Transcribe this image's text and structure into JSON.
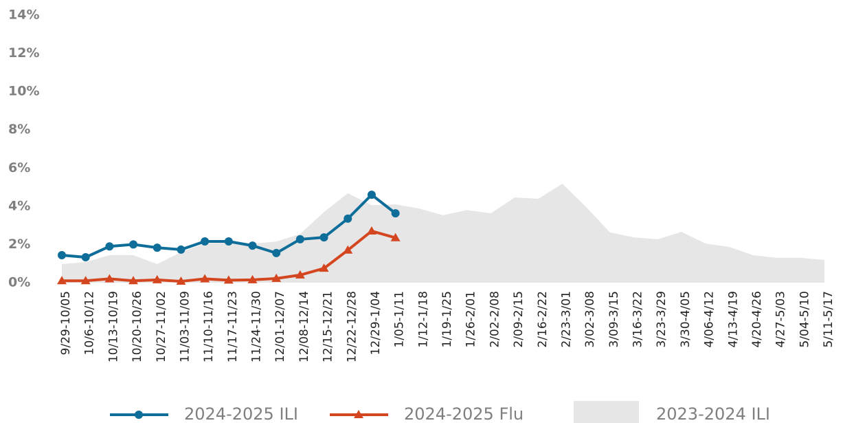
{
  "chart_data": {
    "type": "line",
    "categories": [
      "9/29-10/05",
      "10/6-10/12",
      "10/13-10/19",
      "10/20-10/26",
      "10/27-11/02",
      "11/03-11/09",
      "11/10-11/16",
      "11/17-11/23",
      "11/24-11/30",
      "12/01-12/07",
      "12/08-12/14",
      "12/15-12/21",
      "12/22-12/28",
      "12/29-1/04",
      "1/05-1/11",
      "1/12-1/18",
      "1/19-1/25",
      "1/26-2/01",
      "2/02-2/08",
      "2/09-2/15",
      "2/16-2/22",
      "2/23-3/01",
      "3/02-3/08",
      "3/09-3/15",
      "3/16-3/22",
      "3/23-3/29",
      "3/30-4/05",
      "4/06-4/12",
      "4/13-4/19",
      "4/20-4/26",
      "4/27-5/03",
      "5/04-5/10",
      "5/11-5/17"
    ],
    "series": [
      {
        "name": "2023-2024 ILI",
        "kind": "area",
        "color": "#e6e6e6",
        "values": [
          0.97,
          1.08,
          1.44,
          1.44,
          0.97,
          1.6,
          2.05,
          2.1,
          2.05,
          2.15,
          2.55,
          3.7,
          4.68,
          4.06,
          4.1,
          3.88,
          3.53,
          3.8,
          3.63,
          4.46,
          4.39,
          5.18,
          3.96,
          2.63,
          2.37,
          2.27,
          2.66,
          2.05,
          1.87,
          1.44,
          1.3,
          1.3,
          1.19
        ]
      },
      {
        "name": "2024-2025 ILI",
        "kind": "line",
        "marker": "circle",
        "color": "#0f6e99",
        "values": [
          1.44,
          1.33,
          1.9,
          2.0,
          1.83,
          1.73,
          2.16,
          2.16,
          1.94,
          1.55,
          2.27,
          2.37,
          3.35,
          4.6,
          3.63,
          null,
          null,
          null,
          null,
          null,
          null,
          null,
          null,
          null,
          null,
          null,
          null,
          null,
          null,
          null,
          null,
          null,
          null
        ]
      },
      {
        "name": "2024-2025 Flu",
        "kind": "line",
        "marker": "triangle",
        "color": "#d4461f",
        "values": [
          0.1,
          0.1,
          0.2,
          0.1,
          0.15,
          0.07,
          0.2,
          0.13,
          0.15,
          0.22,
          0.4,
          0.75,
          1.7,
          2.7,
          2.35,
          null,
          null,
          null,
          null,
          null,
          null,
          null,
          null,
          null,
          null,
          null,
          null,
          null,
          null,
          null,
          null,
          null,
          null
        ]
      }
    ],
    "ylim": [
      0,
      14
    ],
    "yticks": [
      {
        "value": 0,
        "label": "0%"
      },
      {
        "value": 2,
        "label": "2%"
      },
      {
        "value": 4,
        "label": "4%"
      },
      {
        "value": 6,
        "label": "6%"
      },
      {
        "value": 8,
        "label": "8%"
      },
      {
        "value": 10,
        "label": "10%"
      },
      {
        "value": 12,
        "label": "12%"
      },
      {
        "value": 14,
        "label": "14%"
      }
    ],
    "grid": false
  }
}
